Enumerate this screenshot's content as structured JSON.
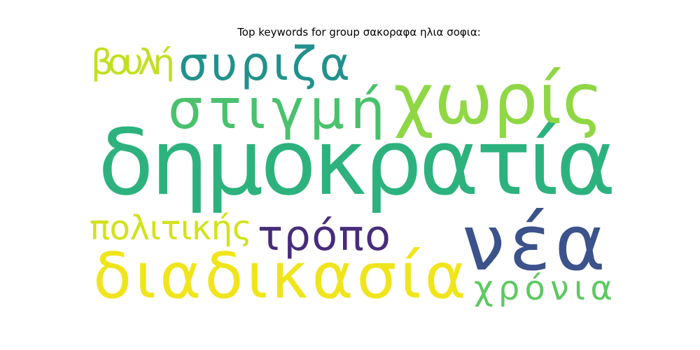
{
  "chart_data": {
    "type": "wordcloud",
    "title": "Top keywords for group σακοραφα ηλια σοφια:",
    "words": [
      {
        "text": "δημοκρατία",
        "color": "#2db27d"
      },
      {
        "text": "νέα",
        "color": "#3b528b"
      },
      {
        "text": "χωρίς",
        "color": "#8fd744"
      },
      {
        "text": "διαδικασία",
        "color": "#f0e51c"
      },
      {
        "text": "στιγμή",
        "color": "#4ac16d"
      },
      {
        "text": "συριζα",
        "color": "#21918c"
      },
      {
        "text": "τρόπο",
        "color": "#472c7a"
      },
      {
        "text": "πολιτικής",
        "color": "#d2e21b"
      },
      {
        "text": "χρόνια",
        "color": "#5ec962"
      },
      {
        "text": "βουλή",
        "color": "#c2df23"
      }
    ]
  }
}
